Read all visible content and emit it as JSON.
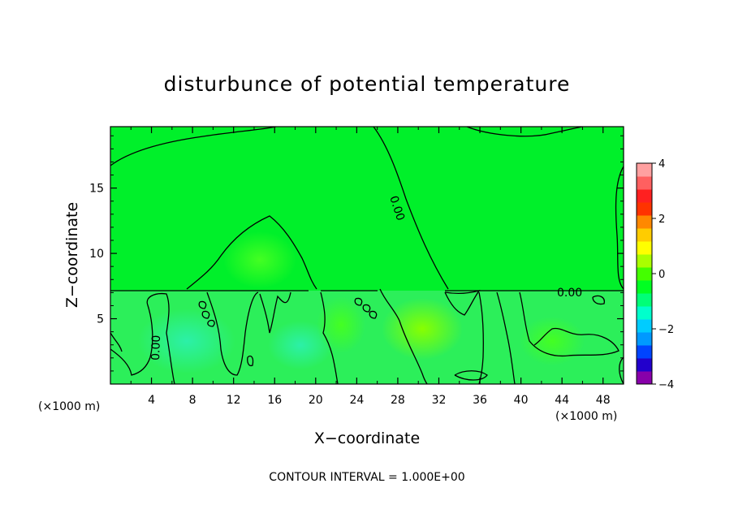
{
  "chart_data": {
    "type": "heatmap",
    "title": "disturbunce of potential temperature",
    "xlabel": "X−coordinate",
    "ylabel": "Z−coordinate",
    "x_unit_left": "(×1000 m)",
    "x_unit_right": "(×1000 m)",
    "x_range": [
      0,
      50
    ],
    "y_range": [
      0,
      19.7
    ],
    "x_ticks": [
      4,
      8,
      12,
      16,
      20,
      24,
      28,
      32,
      36,
      40,
      44,
      48
    ],
    "y_ticks": [
      5,
      10,
      15
    ],
    "colorbar": {
      "range": [
        -4,
        4
      ],
      "ticks": [
        4,
        2,
        0,
        -2,
        -4
      ],
      "tick_labels": [
        "4",
        "2",
        "0",
        "−2",
        "−4"
      ],
      "colors": [
        "#8800aa",
        "#2200cc",
        "#0044ff",
        "#0099ff",
        "#00ccff",
        "#00ffcc",
        "#00ff77",
        "#00ff22",
        "#44ff00",
        "#aaff00",
        "#ffff00",
        "#ffcc00",
        "#ff8800",
        "#ff3300",
        "#ff2020",
        "#ff6060",
        "#ffa0a0"
      ]
    },
    "contour_interval_text": "CONTOUR INTERVAL = 1.000E+00",
    "contour_labels": [
      "0.00",
      "0.00",
      "0.00",
      "0.00",
      "0.00"
    ],
    "regions": [
      {
        "note": "upper layer z > 7.2",
        "value": 0.2
      },
      {
        "note": "lower layer z < 7.2",
        "value": -0.1
      },
      {
        "note": "cool pockets near x=7, z=3",
        "value": -0.6
      },
      {
        "note": "warm pocket near x=30, z=4",
        "value": 0.6
      }
    ],
    "grid": false,
    "legend": "colorbar right"
  }
}
